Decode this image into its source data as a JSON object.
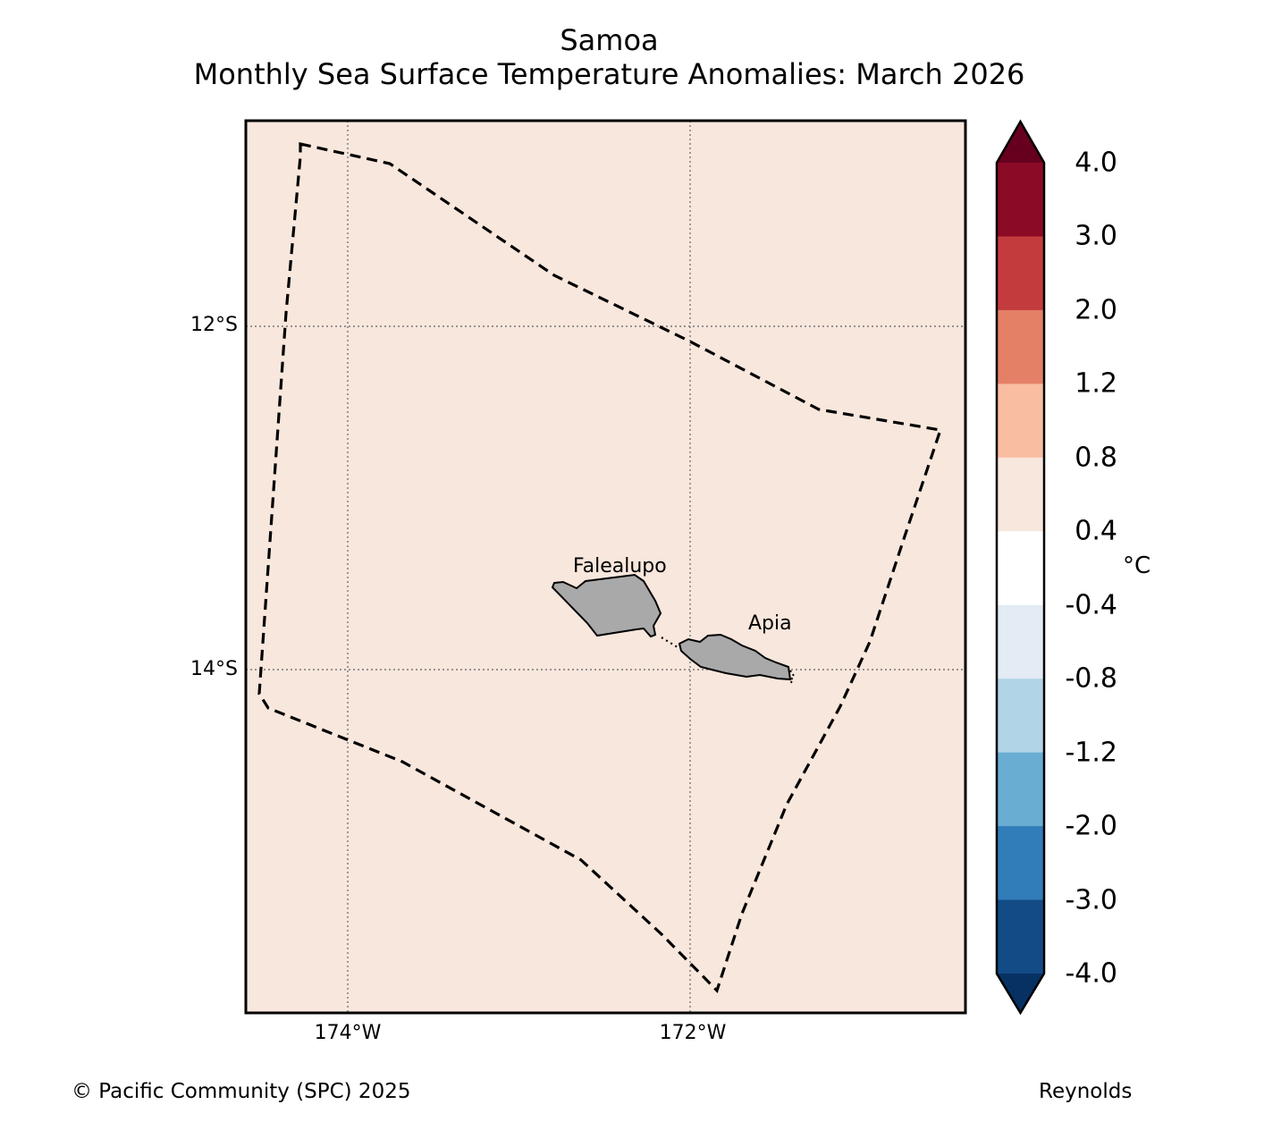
{
  "title": {
    "line1": "Samoa",
    "line2": "Monthly Sea Surface Temperature Anomalies: March 2026"
  },
  "map": {
    "background_color": "#f8e7dd",
    "land_color": "#a9a9a9",
    "lat_labels": [
      "12°S",
      "14°S"
    ],
    "lon_labels": [
      "174°W",
      "172°W"
    ],
    "place_labels": [
      "Falealupo",
      "Apia"
    ],
    "boundary_style": "dashed EEZ boundary"
  },
  "colorbar": {
    "unit": "°C",
    "labels": [
      "4.0",
      "3.0",
      "2.0",
      "1.2",
      "0.8",
      "0.4",
      "-0.4",
      "-0.8",
      "-1.2",
      "-2.0",
      "-3.0",
      "-4.0"
    ],
    "colors_top_to_bottom": [
      "#67001f",
      "#8b0a26",
      "#c43b3e",
      "#e48066",
      "#f9bda2",
      "#f8e7dd",
      "#ffffff",
      "#e3ebf4",
      "#b2d4e7",
      "#6aadd2",
      "#317dba",
      "#134b87",
      "#073163"
    ]
  },
  "footer": {
    "copyright": "© Pacific Community (SPC) 2025",
    "source": "Reynolds"
  }
}
